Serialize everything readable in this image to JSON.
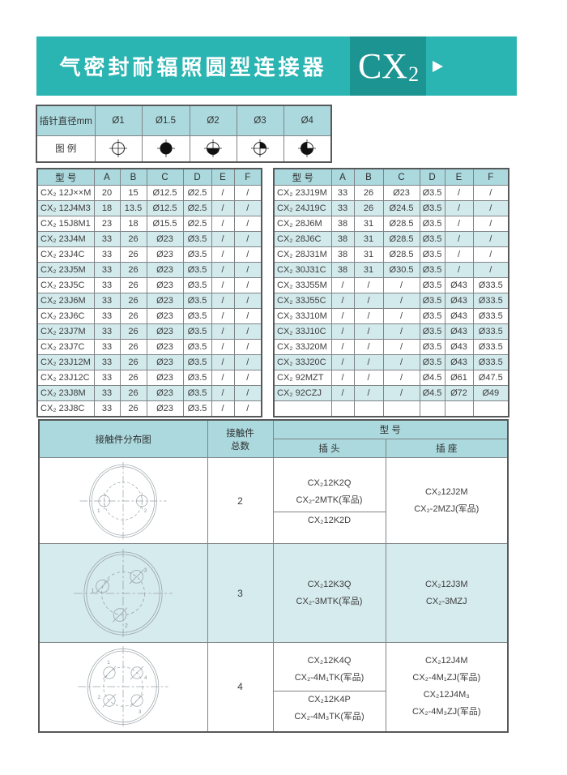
{
  "header": {
    "title": "气密封耐辐照圆型连接器",
    "series_base": "CX",
    "series_sub": "2",
    "arrow_icon": "right-arrow"
  },
  "pin_table": {
    "diameter_label": "插针直径mm",
    "legend_label": "图 例",
    "diameters": [
      "Ø1",
      "Ø1.5",
      "Ø2",
      "Ø3",
      "Ø4"
    ],
    "legend_icons": [
      "crosshair-circle",
      "filled-circle",
      "bottom-half-filled-circle",
      "quarter-filled-circle",
      "three-quarter-filled-circle"
    ]
  },
  "dim_tables": {
    "headers": [
      "型 号",
      "A",
      "B",
      "C",
      "D",
      "E",
      "F"
    ],
    "left_rows": [
      [
        "CX₂ 12J××M",
        "20",
        "15",
        "Ø12.5",
        "Ø2.5",
        "/",
        "/"
      ],
      [
        "CX₂ 12J4M3",
        "18",
        "13.5",
        "Ø12.5",
        "Ø2.5",
        "/",
        "/"
      ],
      [
        "CX₂ 15J8M1",
        "23",
        "18",
        "Ø15.5",
        "Ø2.5",
        "/",
        "/"
      ],
      [
        "CX₂ 23J4M",
        "33",
        "26",
        "Ø23",
        "Ø3.5",
        "/",
        "/"
      ],
      [
        "CX₂ 23J4C",
        "33",
        "26",
        "Ø23",
        "Ø3.5",
        "/",
        "/"
      ],
      [
        "CX₂ 23J5M",
        "33",
        "26",
        "Ø23",
        "Ø3.5",
        "/",
        "/"
      ],
      [
        "CX₂ 23J5C",
        "33",
        "26",
        "Ø23",
        "Ø3.5",
        "/",
        "/"
      ],
      [
        "CX₂ 23J6M",
        "33",
        "26",
        "Ø23",
        "Ø3.5",
        "/",
        "/"
      ],
      [
        "CX₂ 23J6C",
        "33",
        "26",
        "Ø23",
        "Ø3.5",
        "/",
        "/"
      ],
      [
        "CX₂ 23J7M",
        "33",
        "26",
        "Ø23",
        "Ø3.5",
        "/",
        "/"
      ],
      [
        "CX₂ 23J7C",
        "33",
        "26",
        "Ø23",
        "Ø3.5",
        "/",
        "/"
      ],
      [
        "CX₂ 23J12M",
        "33",
        "26",
        "Ø23",
        "Ø3.5",
        "/",
        "/"
      ],
      [
        "CX₂ 23J12C",
        "33",
        "26",
        "Ø23",
        "Ø3.5",
        "/",
        "/"
      ],
      [
        "CX₂ 23J8M",
        "33",
        "26",
        "Ø23",
        "Ø3.5",
        "/",
        "/"
      ],
      [
        "CX₂ 23J8C",
        "33",
        "26",
        "Ø23",
        "Ø3.5",
        "/",
        "/"
      ]
    ],
    "right_rows": [
      [
        "CX₂ 23J19M",
        "33",
        "26",
        "Ø23",
        "Ø3.5",
        "/",
        "/"
      ],
      [
        "CX₂ 24J19C",
        "33",
        "26",
        "Ø24.5",
        "Ø3.5",
        "/",
        "/"
      ],
      [
        "CX₂ 28J6M",
        "38",
        "31",
        "Ø28.5",
        "Ø3.5",
        "/",
        "/"
      ],
      [
        "CX₂ 28J6C",
        "38",
        "31",
        "Ø28.5",
        "Ø3.5",
        "/",
        "/"
      ],
      [
        "CX₂ 28J31M",
        "38",
        "31",
        "Ø28.5",
        "Ø3.5",
        "/",
        "/"
      ],
      [
        "CX₂ 30J31C",
        "38",
        "31",
        "Ø30.5",
        "Ø3.5",
        "/",
        "/"
      ],
      [
        "CX₂ 33J55M",
        "/",
        "/",
        "/",
        "Ø3.5",
        "Ø43",
        "Ø33.5"
      ],
      [
        "CX₂ 33J55C",
        "/",
        "/",
        "/",
        "Ø3.5",
        "Ø43",
        "Ø33.5"
      ],
      [
        "CX₂ 33J10M",
        "/",
        "/",
        "/",
        "Ø3.5",
        "Ø43",
        "Ø33.5"
      ],
      [
        "CX₂ 33J10C",
        "/",
        "/",
        "/",
        "Ø3.5",
        "Ø43",
        "Ø33.5"
      ],
      [
        "CX₂ 33J20M",
        "/",
        "/",
        "/",
        "Ø3.5",
        "Ø43",
        "Ø33.5"
      ],
      [
        "CX₂ 33J20C",
        "/",
        "/",
        "/",
        "Ø3.5",
        "Ø43",
        "Ø33.5"
      ],
      [
        "CX₂ 92MZT",
        "/",
        "/",
        "/",
        "Ø4.5",
        "Ø61",
        "Ø47.5"
      ],
      [
        "CX₂ 92CZJ",
        "/",
        "/",
        "/",
        "Ø4.5",
        "Ø72",
        "Ø49"
      ],
      [
        "",
        "",
        "",
        "",
        "",
        "",
        ""
      ]
    ]
  },
  "contact_table": {
    "diagram_label": "接触件分布图",
    "contacts_label": "接触件",
    "total_label": "总数",
    "model_label": "型 号",
    "plug_label": "插 头",
    "socket_label": "插 座",
    "rows": [
      {
        "count": "2",
        "pin_labels": [
          "1",
          "2"
        ],
        "plug_top": [
          "CX₂12K2Q",
          "CX₂-2MTK(军品)"
        ],
        "plug_bottom": [
          "CX₂12K2D"
        ],
        "socket": [
          "CX₂12J2M",
          "CX₂-2MZJ(军品)"
        ]
      },
      {
        "count": "3",
        "pin_labels": [
          "1",
          "2",
          "3"
        ],
        "plug": [
          "CX₂12K3Q",
          "CX₂-3MTK(军品)"
        ],
        "socket": [
          "CX₂12J3M",
          "CX₂-3MZJ"
        ]
      },
      {
        "count": "4",
        "pin_labels": [
          "1",
          "2",
          "3",
          "4"
        ],
        "plug_top": [
          "CX₂12K4Q",
          "CX₂-4M₁TK(军品)"
        ],
        "plug_bottom": [
          "CX₂12K4P",
          "CX₂-4M₃TK(军品)"
        ],
        "socket": [
          "CX₂12J4M",
          "CX₂-4M₁ZJ(军品)",
          "CX₂12J4M₃",
          "CX₂-4M₃ZJ(军品)"
        ]
      }
    ]
  },
  "colors": {
    "band_teal": "#2ab4b2",
    "series_box_teal": "#1c9492",
    "table_header_blue": "#abd9de",
    "row_tint": "#d3eaed"
  }
}
